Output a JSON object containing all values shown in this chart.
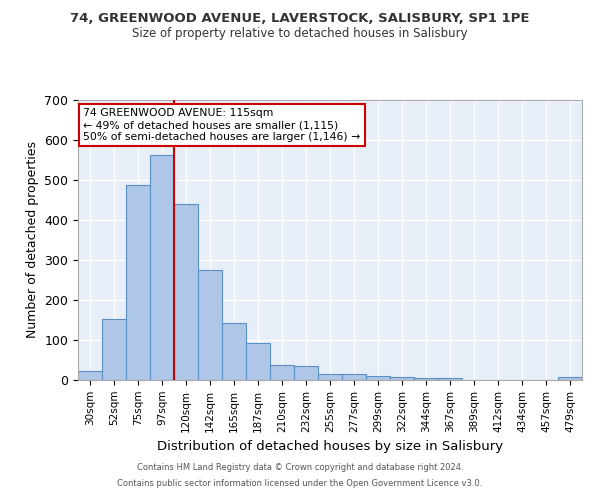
{
  "title1": "74, GREENWOOD AVENUE, LAVERSTOCK, SALISBURY, SP1 1PE",
  "title2": "Size of property relative to detached houses in Salisbury",
  "xlabel": "Distribution of detached houses by size in Salisbury",
  "ylabel": "Number of detached properties",
  "bar_labels": [
    "30sqm",
    "52sqm",
    "75sqm",
    "97sqm",
    "120sqm",
    "142sqm",
    "165sqm",
    "187sqm",
    "210sqm",
    "232sqm",
    "255sqm",
    "277sqm",
    "299sqm",
    "322sqm",
    "344sqm",
    "367sqm",
    "389sqm",
    "412sqm",
    "434sqm",
    "457sqm",
    "479sqm"
  ],
  "bar_values": [
    22,
    153,
    487,
    563,
    441,
    274,
    143,
    93,
    37,
    35,
    16,
    16,
    10,
    8,
    5,
    5,
    0,
    0,
    0,
    0,
    7
  ],
  "bar_color": "#aec6e8",
  "bar_edge_color": "#5a8fc2",
  "bg_color": "#e8eef8",
  "grid_color": "#ffffff",
  "vline_color": "#cc0000",
  "annotation_text": "74 GREENWOOD AVENUE: 115sqm\n← 49% of detached houses are smaller (1,115)\n50% of semi-detached houses are larger (1,146) →",
  "annotation_box_color": "#ffffff",
  "annotation_box_edge": "#cc0000",
  "ylim": [
    0,
    700
  ],
  "yticks": [
    0,
    100,
    200,
    300,
    400,
    500,
    600,
    700
  ],
  "footer1": "Contains HM Land Registry data © Crown copyright and database right 2024.",
  "footer2": "Contains public sector information licensed under the Open Government Licence v3.0."
}
